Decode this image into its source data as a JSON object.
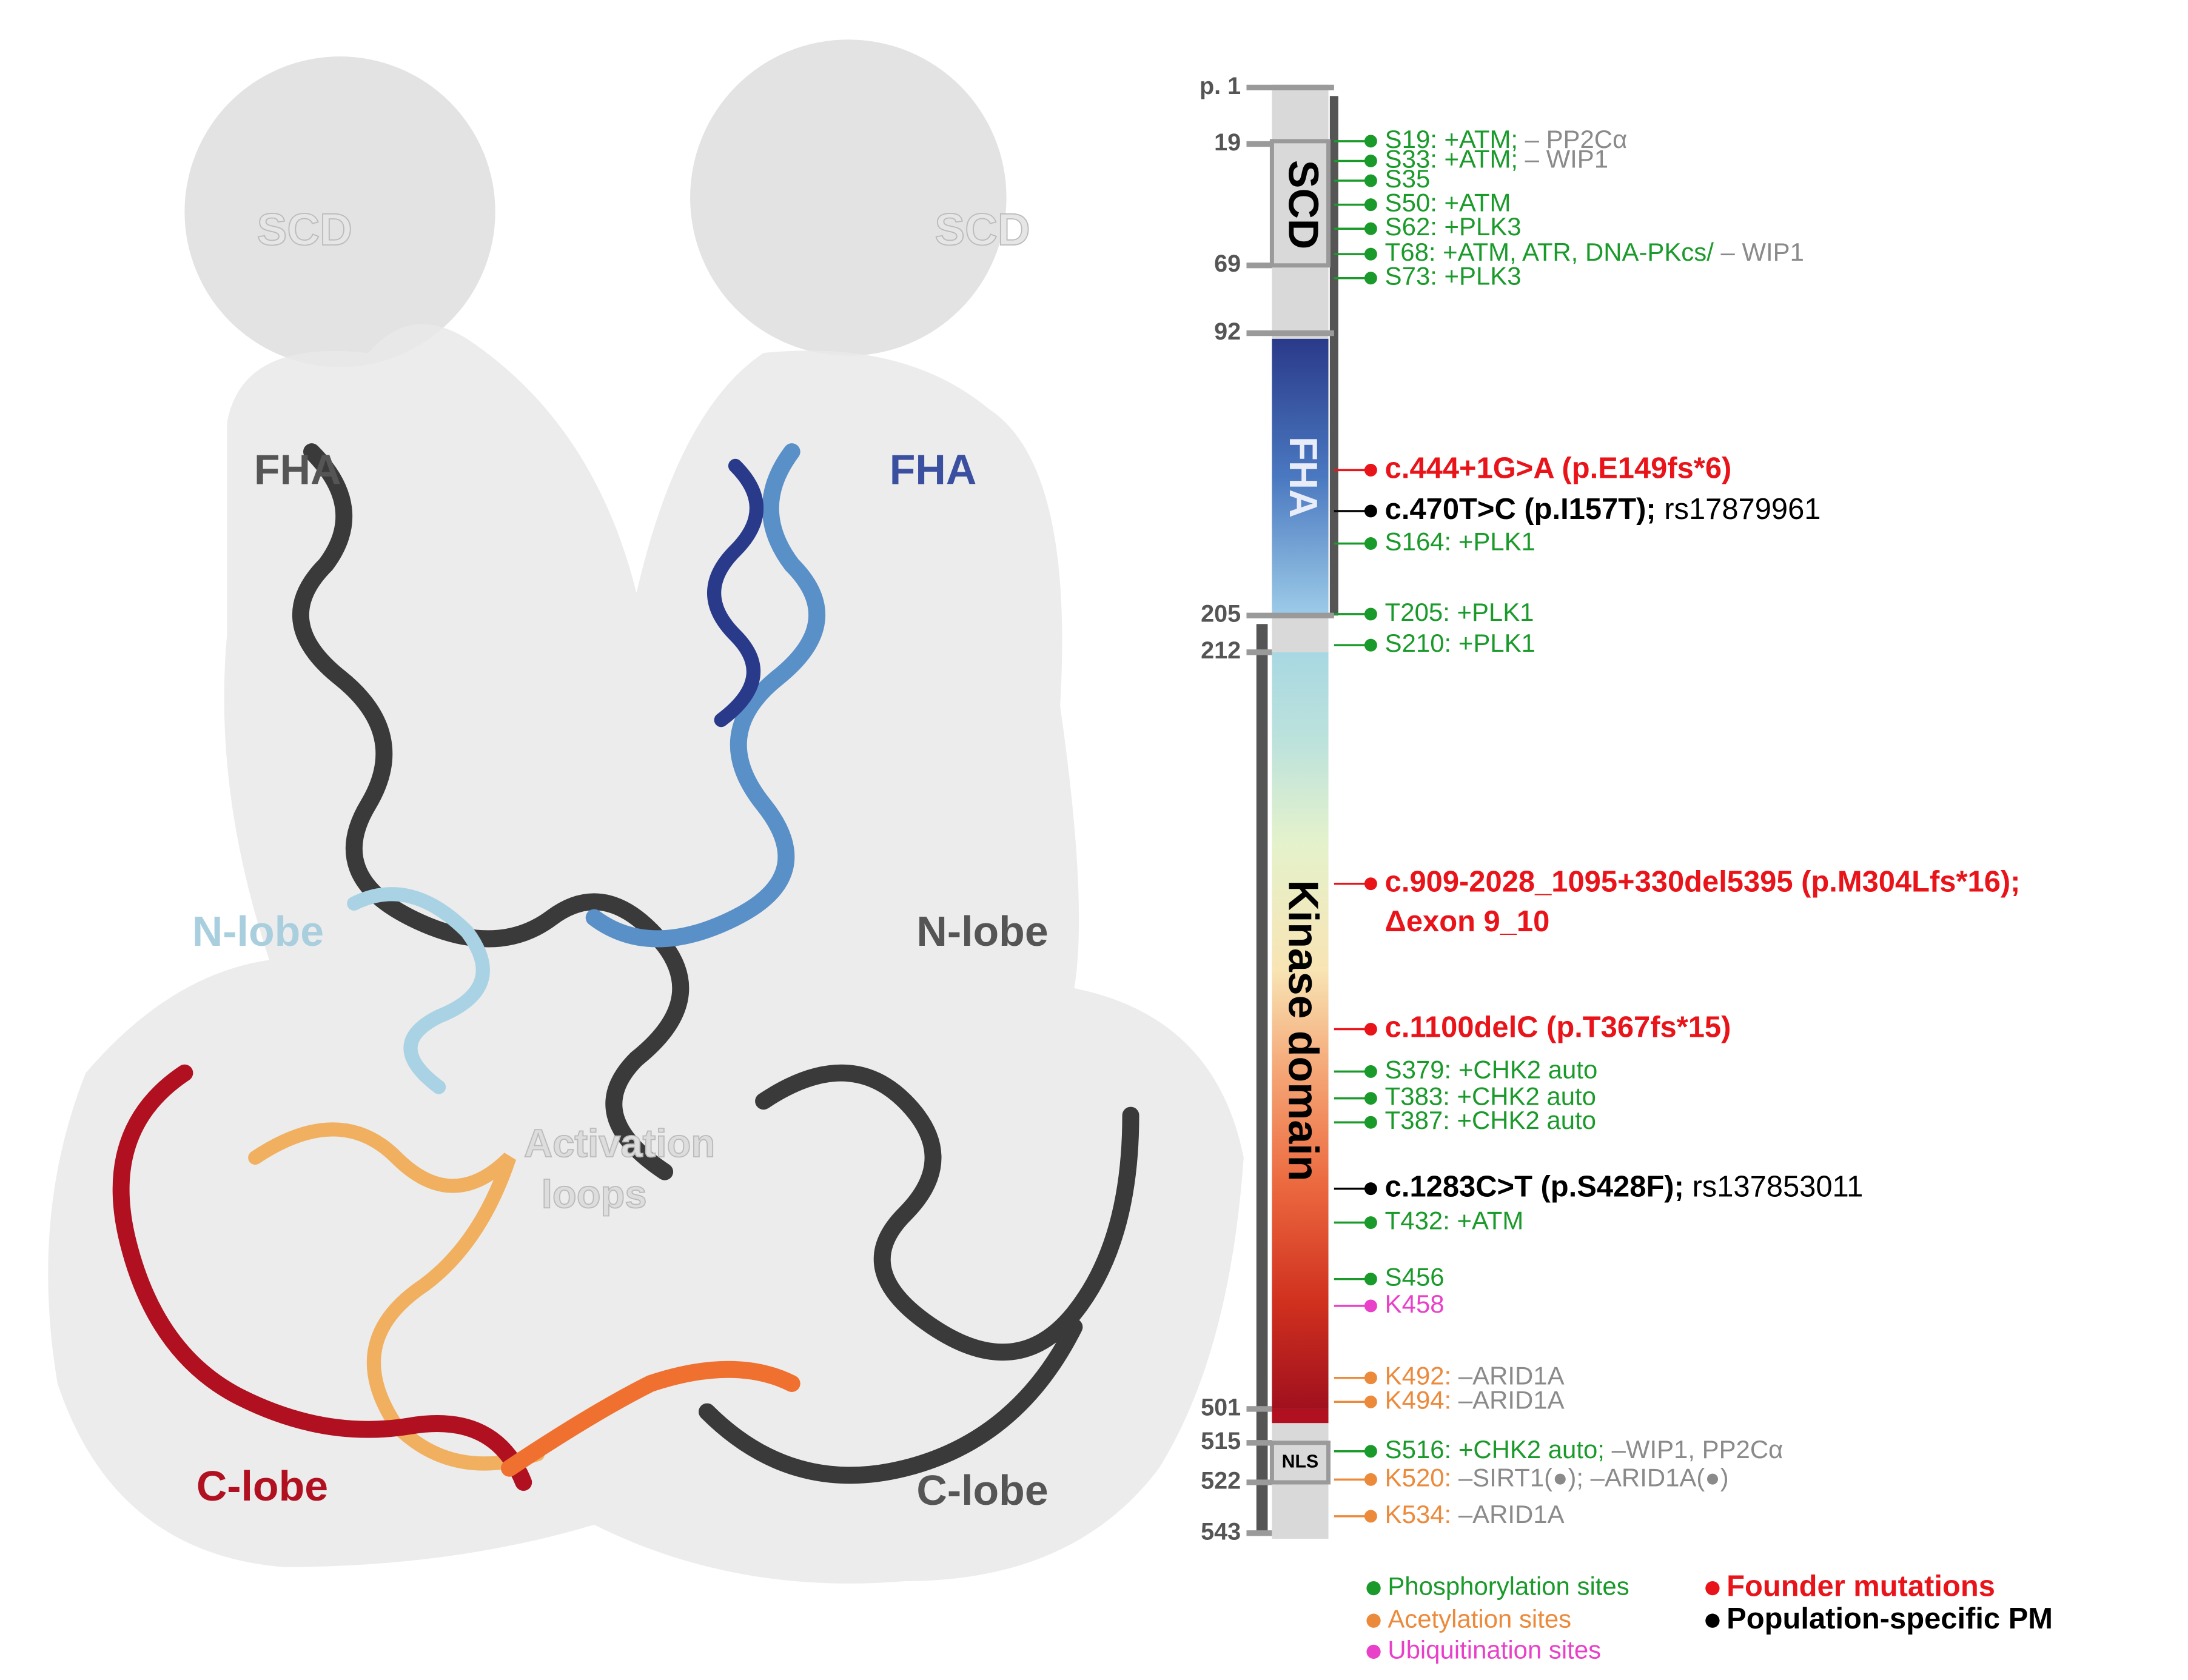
{
  "structure": {
    "labels": [
      {
        "text": "SCD",
        "color": "#e6e6e6"
      },
      {
        "text": "SCD",
        "color": "#e6e6e6"
      },
      {
        "text": "FHA",
        "color": "#555555"
      },
      {
        "text": "FHA",
        "color": "#3a4fa0"
      },
      {
        "text": "N-lobe",
        "color": "#a9cfdf"
      },
      {
        "text": "N-lobe",
        "color": "#555555"
      },
      {
        "text": "Activation",
        "color": "#dddddd"
      },
      {
        "text": "loops",
        "color": "#dddddd"
      },
      {
        "text": "C-lobe",
        "color": "#b01020"
      },
      {
        "text": "C-lobe",
        "color": "#555555"
      }
    ]
  },
  "domain_map": {
    "positions": [
      "p. 1",
      19,
      69,
      92,
      205,
      212,
      501,
      515,
      522,
      543
    ],
    "domains": [
      "SCD",
      "FHA",
      "Kinase domain",
      "NLS"
    ],
    "sites": [
      {
        "label": "S19: +ATM;",
        "note": "– PP2Cα",
        "color": "#1a9a2a"
      },
      {
        "label": "S33: +ATM;",
        "note": "– WIP1",
        "color": "#1a9a2a"
      },
      {
        "label": "S35",
        "color": "#1a9a2a"
      },
      {
        "label": "S50: +ATM",
        "color": "#1a9a2a"
      },
      {
        "label": "S62: +PLK3",
        "color": "#1a9a2a"
      },
      {
        "label": "T68: +ATM, ATR, DNA-PKcs/",
        "note": "– WIP1",
        "color": "#1a9a2a"
      },
      {
        "label": "S73: +PLK3",
        "color": "#1a9a2a"
      },
      {
        "label": "c.444+1G>A (p.E149fs*6)",
        "color": "#e8141a",
        "bold": true
      },
      {
        "label": "c.470T>C (p.I157T);",
        "note": "rs17879961",
        "color": "#000000",
        "note_color": "#000000",
        "bold": true
      },
      {
        "label": "S164: +PLK1",
        "color": "#1a9a2a"
      },
      {
        "label": "T205: +PLK1",
        "color": "#1a9a2a"
      },
      {
        "label": "S210: +PLK1",
        "color": "#1a9a2a"
      },
      {
        "label": "c.909-2028_1095+330del5395 (p.M304Lfs*16);",
        "line2": "Δexon 9_10",
        "color": "#e8141a",
        "bold": true
      },
      {
        "label": "c.1100delC (p.T367fs*15)",
        "color": "#e8141a",
        "bold": true
      },
      {
        "label": "S379: +CHK2 auto",
        "color": "#1a9a2a"
      },
      {
        "label": "T383: +CHK2 auto",
        "color": "#1a9a2a"
      },
      {
        "label": "T387: +CHK2 auto",
        "color": "#1a9a2a"
      },
      {
        "label": "c.1283C>T (p.S428F);",
        "note": "rs137853011",
        "color": "#000000",
        "note_color": "#000000",
        "bold": true
      },
      {
        "label": "T432: +ATM",
        "color": "#1a9a2a"
      },
      {
        "label": "S456",
        "color": "#1a9a2a"
      },
      {
        "label": "K458",
        "color": "#e840c8"
      },
      {
        "label": "K492:",
        "note": "–ARID1A",
        "color": "#ec8a3c"
      },
      {
        "label": "K494:",
        "note": "–ARID1A",
        "color": "#ec8a3c"
      },
      {
        "label": "S516: +CHK2 auto;",
        "note": "–WIP1, PP2Cα",
        "color": "#1a9a2a"
      },
      {
        "label": "K520:",
        "note": "–SIRT1(●); –ARID1A(●)",
        "color": "#ec8a3c"
      },
      {
        "label": "K534:",
        "note": "–ARID1A",
        "color": "#ec8a3c"
      }
    ]
  },
  "legend": [
    {
      "label": "Phosphorylation sites",
      "color": "#1a9a2a"
    },
    {
      "label": "Acetylation sites",
      "color": "#ec8a3c"
    },
    {
      "label": "Ubiquitination sites",
      "color": "#e840c8"
    },
    {
      "label": "Founder mutations",
      "color": "#e8141a",
      "bold": true
    },
    {
      "label": "Population-specific PM",
      "color": "#000000",
      "bold": true
    }
  ]
}
